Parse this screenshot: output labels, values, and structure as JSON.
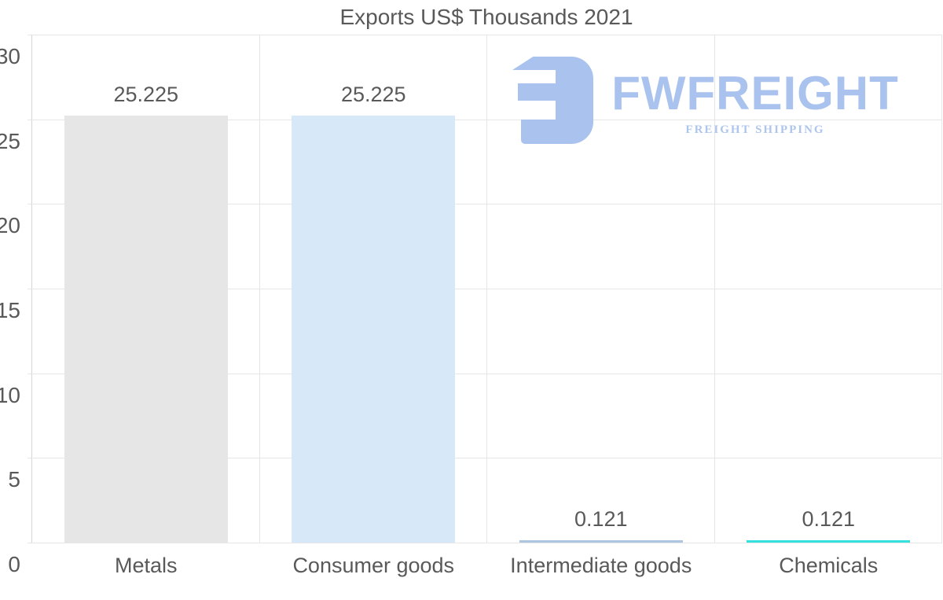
{
  "title": "Exports US$ Thousands 2021",
  "logo": {
    "name": "FWFREIGHT",
    "tagline": "FREIGHT SHIPPING",
    "color": "#a9c3ee",
    "tagline_color": "#aec5ec"
  },
  "colors": {
    "text": "#595959",
    "grid": "#e6e6e6",
    "axis": "#d6d6d6",
    "background": "#ffffff"
  },
  "chart_data": {
    "type": "bar",
    "title": "Exports US$ Thousands 2021",
    "categories": [
      "Metals",
      "Consumer goods",
      "Intermediate goods",
      "Chemicals"
    ],
    "values": [
      25.225,
      25.225,
      0.121,
      0.121
    ],
    "value_labels": [
      "25.225",
      "25.225",
      "0.121",
      "0.121"
    ],
    "bar_colors": [
      "#e6e6e6",
      "#d7e8f9",
      "#aec7e0",
      "#35e1dc"
    ],
    "xlabel": "",
    "ylabel": "",
    "ylim": [
      0,
      30
    ],
    "yticks": [
      0,
      5,
      10,
      15,
      20,
      25,
      30
    ],
    "grid": true,
    "legend": "none"
  }
}
